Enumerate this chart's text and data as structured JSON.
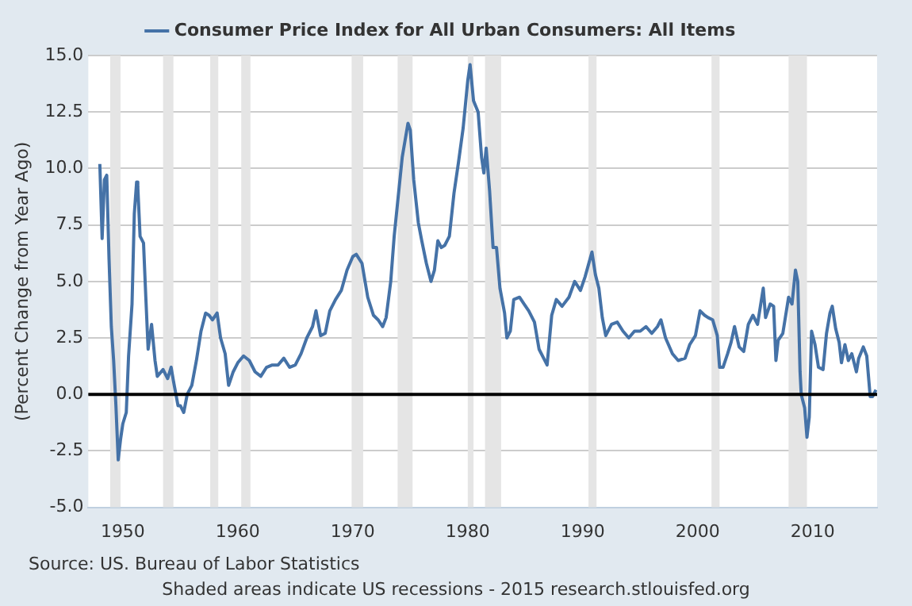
{
  "chart_data": {
    "type": "line",
    "ylabel": "(Percent Change from Year Ago)",
    "legend": "top",
    "grid": "y",
    "marker": "none",
    "line_style": "solid",
    "xlim": [
      1947,
      2015.6
    ],
    "xticks": [
      1950,
      1960,
      1970,
      1980,
      1990,
      2000,
      2010
    ],
    "ylim": [
      -5,
      15
    ],
    "yticks": [
      {
        "value": -5,
        "label": "-5.0"
      },
      {
        "value": -2.5,
        "label": "-2.5"
      },
      {
        "value": 0,
        "label": "0.0"
      },
      {
        "value": 2.5,
        "label": "2.5"
      },
      {
        "value": 5,
        "label": "5.0"
      },
      {
        "value": 7.5,
        "label": "7.5"
      },
      {
        "value": 10,
        "label": "10.0"
      },
      {
        "value": 12.5,
        "label": "12.5"
      },
      {
        "value": 15,
        "label": "15.0"
      }
    ],
    "ref_lines": [
      {
        "axis": "y",
        "value": 0,
        "color": "#000000"
      }
    ],
    "bands": [
      {
        "axis": "x",
        "from": 1948.9,
        "to": 1949.8,
        "color": "#e5e5e5"
      },
      {
        "axis": "x",
        "from": 1953.5,
        "to": 1954.4,
        "color": "#e5e5e5"
      },
      {
        "axis": "x",
        "from": 1957.6,
        "to": 1958.3,
        "color": "#e5e5e5"
      },
      {
        "axis": "x",
        "from": 1960.3,
        "to": 1961.1,
        "color": "#e5e5e5"
      },
      {
        "axis": "x",
        "from": 1969.9,
        "to": 1970.9,
        "color": "#e5e5e5"
      },
      {
        "axis": "x",
        "from": 1973.9,
        "to": 1975.2,
        "color": "#e5e5e5"
      },
      {
        "axis": "x",
        "from": 1980,
        "to": 1980.5,
        "color": "#e5e5e5"
      },
      {
        "axis": "x",
        "from": 1981.5,
        "to": 1982.9,
        "color": "#e5e5e5"
      },
      {
        "axis": "x",
        "from": 1990.5,
        "to": 1991.2,
        "color": "#e5e5e5"
      },
      {
        "axis": "x",
        "from": 2001.2,
        "to": 2001.9,
        "color": "#e5e5e5"
      },
      {
        "axis": "x",
        "from": 2007.9,
        "to": 2009.5,
        "color": "#e5e5e5"
      }
    ],
    "annotations": [
      "Source: US. Bureau of Labor Statistics",
      "Shaded areas indicate US recessions - 2015 research.stlouisfed.org"
    ],
    "series": [
      {
        "name": "Consumer Price Index for All Urban Consumers: All Items",
        "color": "#4572a7",
        "x": [
          1948.0,
          1948.2,
          1948.4,
          1948.6,
          1948.8,
          1949.0,
          1949.2,
          1949.4,
          1949.6,
          1949.8,
          1950.0,
          1950.3,
          1950.5,
          1950.8,
          1951.0,
          1951.2,
          1951.3,
          1951.5,
          1951.8,
          1952.0,
          1952.2,
          1952.5,
          1952.8,
          1953.0,
          1953.5,
          1953.9,
          1954.2,
          1954.4,
          1954.8,
          1955.0,
          1955.3,
          1955.6,
          1956.0,
          1956.4,
          1956.8,
          1957.2,
          1957.5,
          1957.8,
          1958.2,
          1958.5,
          1958.9,
          1959.2,
          1959.6,
          1960.0,
          1960.5,
          1961.0,
          1961.5,
          1962.0,
          1962.5,
          1963.0,
          1963.5,
          1964.0,
          1964.5,
          1965.0,
          1965.5,
          1966.0,
          1966.5,
          1966.8,
          1967.2,
          1967.6,
          1968.0,
          1968.5,
          1969.0,
          1969.5,
          1970.0,
          1970.3,
          1970.8,
          1971.3,
          1971.8,
          1972.2,
          1972.6,
          1972.9,
          1973.3,
          1973.6,
          1973.9,
          1974.3,
          1974.8,
          1975.0,
          1975.3,
          1975.7,
          1976.0,
          1976.4,
          1976.8,
          1977.1,
          1977.4,
          1977.7,
          1978.0,
          1978.4,
          1978.8,
          1979.2,
          1979.6,
          1980.0,
          1980.2,
          1980.5,
          1980.9,
          1981.2,
          1981.4,
          1981.6,
          1981.9,
          1982.2,
          1982.5,
          1982.8,
          1983.2,
          1983.4,
          1983.7,
          1984.0,
          1984.5,
          1984.9,
          1985.3,
          1985.8,
          1986.2,
          1986.6,
          1986.9,
          1987.3,
          1987.7,
          1988.2,
          1988.8,
          1989.3,
          1989.8,
          1990.2,
          1990.8,
          1991.1,
          1991.4,
          1991.7,
          1992.0,
          1992.5,
          1993.0,
          1993.5,
          1994.0,
          1994.5,
          1995.0,
          1995.5,
          1996.0,
          1996.5,
          1996.8,
          1997.2,
          1997.8,
          1998.3,
          1998.9,
          1999.3,
          1999.8,
          2000.2,
          2000.6,
          2000.9,
          2001.3,
          2001.7,
          2001.9,
          2002.2,
          2002.6,
          2002.9,
          2003.2,
          2003.6,
          2004.0,
          2004.4,
          2004.8,
          2005.2,
          2005.7,
          2005.9,
          2006.3,
          2006.6,
          2006.8,
          2007.0,
          2007.4,
          2007.9,
          2008.2,
          2008.5,
          2008.7,
          2008.9,
          2009.0,
          2009.3,
          2009.5,
          2009.7,
          2009.9,
          2010.2,
          2010.5,
          2010.9,
          2011.2,
          2011.5,
          2011.7,
          2012.0,
          2012.3,
          2012.5,
          2012.8,
          2013.1,
          2013.4,
          2013.8,
          2014.0,
          2014.4,
          2014.7,
          2015.0,
          2015.2,
          2015.5
        ],
        "values": [
          10.2,
          6.9,
          9.5,
          9.7,
          6.0,
          3.0,
          1.5,
          -0.5,
          -2.9,
          -2.0,
          -1.3,
          -0.8,
          1.7,
          4.0,
          8.0,
          9.4,
          9.2,
          7.0,
          6.7,
          4.3,
          2.0,
          3.1,
          1.5,
          0.8,
          1.1,
          0.7,
          1.2,
          0.6,
          -0.5,
          -0.5,
          -0.8,
          0.0,
          0.4,
          1.5,
          2.8,
          3.6,
          3.5,
          3.3,
          3.6,
          2.5,
          1.8,
          0.4,
          1.0,
          1.4,
          1.7,
          1.5,
          1.0,
          0.8,
          1.2,
          1.3,
          1.3,
          1.6,
          1.2,
          1.3,
          1.8,
          2.5,
          3.0,
          3.7,
          2.6,
          2.7,
          3.7,
          4.2,
          4.6,
          5.5,
          6.1,
          6.2,
          5.8,
          4.3,
          3.5,
          3.3,
          3.0,
          3.4,
          5.0,
          7.0,
          8.5,
          10.5,
          12.0,
          11.7,
          9.5,
          7.6,
          6.8,
          5.8,
          5.0,
          5.5,
          6.8,
          6.5,
          6.6,
          7.0,
          8.9,
          10.3,
          11.8,
          13.9,
          14.6,
          13.0,
          12.5,
          10.5,
          9.8,
          10.9,
          9.0,
          6.5,
          6.5,
          4.7,
          3.6,
          2.5,
          2.8,
          4.2,
          4.3,
          4.0,
          3.7,
          3.2,
          2.0,
          1.6,
          1.3,
          3.5,
          4.2,
          3.9,
          4.3,
          5.0,
          4.6,
          5.2,
          6.3,
          5.3,
          4.7,
          3.4,
          2.6,
          3.1,
          3.2,
          2.8,
          2.5,
          2.8,
          2.8,
          3.0,
          2.7,
          3.0,
          3.3,
          2.5,
          1.8,
          1.5,
          1.6,
          2.2,
          2.6,
          3.7,
          3.5,
          3.4,
          3.3,
          2.6,
          1.2,
          1.2,
          1.8,
          2.3,
          3.0,
          2.1,
          1.9,
          3.1,
          3.5,
          3.1,
          4.7,
          3.4,
          4.0,
          3.9,
          1.5,
          2.4,
          2.7,
          4.3,
          4.0,
          5.5,
          5.0,
          1.0,
          0.0,
          -0.6,
          -1.9,
          -1.0,
          2.8,
          2.2,
          1.2,
          1.1,
          2.7,
          3.6,
          3.9,
          2.9,
          2.3,
          1.4,
          2.2,
          1.5,
          1.8,
          1.0,
          1.6,
          2.1,
          1.7,
          -0.1,
          -0.1,
          0.2
        ]
      }
    ]
  }
}
